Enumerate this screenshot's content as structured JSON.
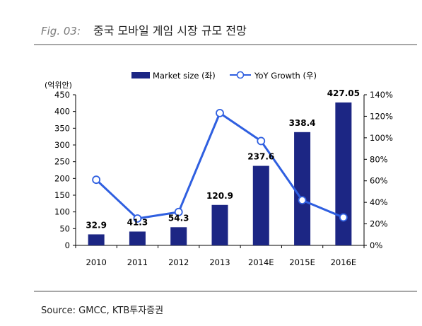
{
  "figure": {
    "label": "Fig. 03:",
    "title": "중국 모바일 게임 시장 규모 전망",
    "source": "Source: GMCC, KTB투자증권"
  },
  "chart_data": {
    "type": "bar",
    "categories": [
      "2010",
      "2011",
      "2012",
      "2013",
      "2014E",
      "2015E",
      "2016E"
    ],
    "series": [
      {
        "name": "Market size (좌)",
        "kind": "bar",
        "axis": "left",
        "values": [
          32.9,
          41.3,
          54.3,
          120.9,
          237.6,
          338.4,
          427.05
        ],
        "labels": [
          "32.9",
          "41.3",
          "54.3",
          "120.9",
          "237.6",
          "338.4",
          "427.05"
        ],
        "color": "#1c2684"
      },
      {
        "name": "YoY Growth (우)",
        "kind": "line",
        "axis": "right",
        "values": [
          61,
          25,
          31,
          123,
          97,
          42,
          26
        ],
        "color": "#2f5fe0"
      }
    ],
    "ylabel_left_unit": "(억위안)",
    "ylim_left": [
      0,
      450
    ],
    "yticks_left": [
      "0",
      "50",
      "100",
      "150",
      "200",
      "250",
      "300",
      "350",
      "400",
      "450"
    ],
    "ylim_right": [
      0,
      140
    ],
    "yticks_right": [
      "0%",
      "20%",
      "40%",
      "60%",
      "80%",
      "100%",
      "120%",
      "140%"
    ],
    "legend_position": "top-center",
    "grid": false
  }
}
